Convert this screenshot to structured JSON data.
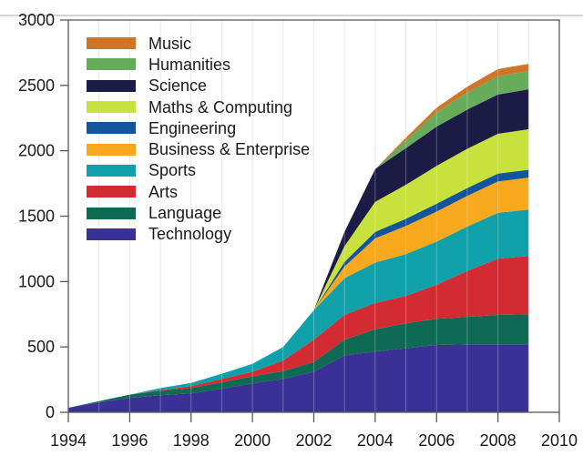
{
  "figure": {
    "background": "#ffffff",
    "frame_color": "#58585a",
    "top_border_color": "#a8a8a8",
    "gridline_color": "#e3e3e3",
    "text_color": "#1a1a1a"
  },
  "chart_data": {
    "type": "area",
    "stacked": true,
    "title": "",
    "xlabel": "",
    "ylabel": "",
    "xlim": [
      1994,
      2010
    ],
    "ylim": [
      0,
      3000
    ],
    "x_ticks": [
      "1994",
      "1996",
      "1998",
      "2000",
      "2002",
      "2004",
      "2006",
      "2008",
      "2010"
    ],
    "y_ticks": [
      "0",
      "500",
      "1000",
      "1500",
      "2000",
      "2500",
      "3000"
    ],
    "grid": "faint vertical gridline at each year, no horizontal gridlines",
    "legend_position": "top-left inside plot",
    "x": [
      1994,
      1995,
      1996,
      1997,
      1998,
      1999,
      2000,
      2001,
      2002,
      2003,
      2004,
      2005,
      2006,
      2007,
      2008,
      2009
    ],
    "series": [
      {
        "id": "technology",
        "name": "Technology",
        "color": "#3B3095",
        "values": [
          35,
          75,
          110,
          130,
          145,
          180,
          220,
          255,
          310,
          435,
          465,
          490,
          515,
          520,
          520,
          520
        ]
      },
      {
        "id": "language",
        "name": "Language",
        "color": "#0E6A52",
        "values": [
          0,
          10,
          25,
          35,
          40,
          50,
          55,
          60,
          75,
          120,
          170,
          190,
          200,
          210,
          225,
          230
        ]
      },
      {
        "id": "arts",
        "name": "Arts",
        "color": "#D32B33",
        "values": [
          0,
          0,
          0,
          5,
          15,
          25,
          35,
          80,
          170,
          190,
          200,
          210,
          260,
          350,
          430,
          445
        ]
      },
      {
        "id": "sports",
        "name": "Sports",
        "color": "#0FA0A9",
        "values": [
          0,
          0,
          0,
          15,
          25,
          40,
          60,
          105,
          225,
          280,
          310,
          320,
          330,
          340,
          350,
          355
        ]
      },
      {
        "id": "business-enterprise",
        "name": "Business & Enterprise",
        "color": "#F7A81C",
        "values": [
          0,
          0,
          0,
          0,
          0,
          0,
          0,
          0,
          0,
          90,
          185,
          215,
          230,
          235,
          240,
          245
        ]
      },
      {
        "id": "engineering",
        "name": "Engineering",
        "color": "#12559B",
        "values": [
          0,
          0,
          0,
          0,
          0,
          0,
          0,
          0,
          0,
          35,
          50,
          55,
          60,
          60,
          60,
          60
        ]
      },
      {
        "id": "maths-computing",
        "name": "Maths & Computing",
        "color": "#C9E13D",
        "values": [
          0,
          0,
          0,
          0,
          0,
          0,
          0,
          0,
          0,
          120,
          230,
          260,
          290,
          300,
          305,
          310
        ]
      },
      {
        "id": "science",
        "name": "Science",
        "color": "#1B1B45",
        "values": [
          0,
          0,
          0,
          0,
          0,
          0,
          0,
          0,
          0,
          110,
          250,
          280,
          300,
          300,
          300,
          305
        ]
      },
      {
        "id": "humanities",
        "name": "Humanities",
        "color": "#67AC5B",
        "values": [
          0,
          0,
          0,
          0,
          0,
          0,
          0,
          0,
          0,
          0,
          0,
          60,
          110,
          130,
          140,
          140
        ]
      },
      {
        "id": "music",
        "name": "Music",
        "color": "#CE7528",
        "values": [
          0,
          0,
          0,
          0,
          0,
          0,
          0,
          0,
          0,
          0,
          0,
          20,
          35,
          45,
          55,
          55
        ]
      }
    ],
    "legend_order": [
      "music",
      "humanities",
      "science",
      "maths-computing",
      "engineering",
      "business-enterprise",
      "sports",
      "arts",
      "language",
      "technology"
    ]
  }
}
